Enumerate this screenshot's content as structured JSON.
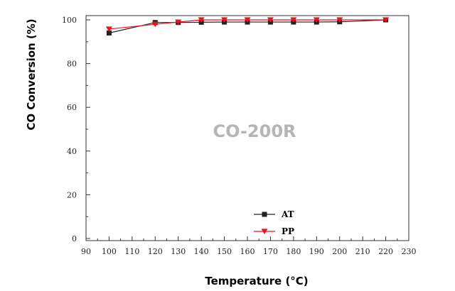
{
  "chart_data": {
    "type": "line",
    "xlabel": "Temperature (°C)",
    "ylabel": "CO Conversion (%)",
    "annotation": "CO-200R",
    "xlim": [
      90,
      230
    ],
    "ylim": [
      0,
      100
    ],
    "xticks": [
      90,
      100,
      110,
      120,
      130,
      140,
      150,
      160,
      170,
      180,
      190,
      200,
      210,
      220,
      230
    ],
    "yticks": [
      0,
      20,
      40,
      60,
      80,
      100
    ],
    "grid": false,
    "legend_position": "bottom-right",
    "series": [
      {
        "name": "AT",
        "color": "#222222",
        "marker": "square",
        "x": [
          100,
          120,
          130,
          140,
          150,
          160,
          170,
          180,
          190,
          200,
          220
        ],
        "y": [
          94,
          98.8,
          98.8,
          98.9,
          99,
          99,
          99,
          99,
          99,
          99.1,
          100
        ]
      },
      {
        "name": "PP",
        "color": "#e8141c",
        "marker": "triangle-down",
        "x": [
          100,
          120,
          130,
          140,
          150,
          160,
          170,
          180,
          190,
          200,
          220
        ],
        "y": [
          95.8,
          98,
          99,
          100,
          100,
          100,
          100,
          100,
          100,
          100,
          100
        ]
      }
    ]
  }
}
